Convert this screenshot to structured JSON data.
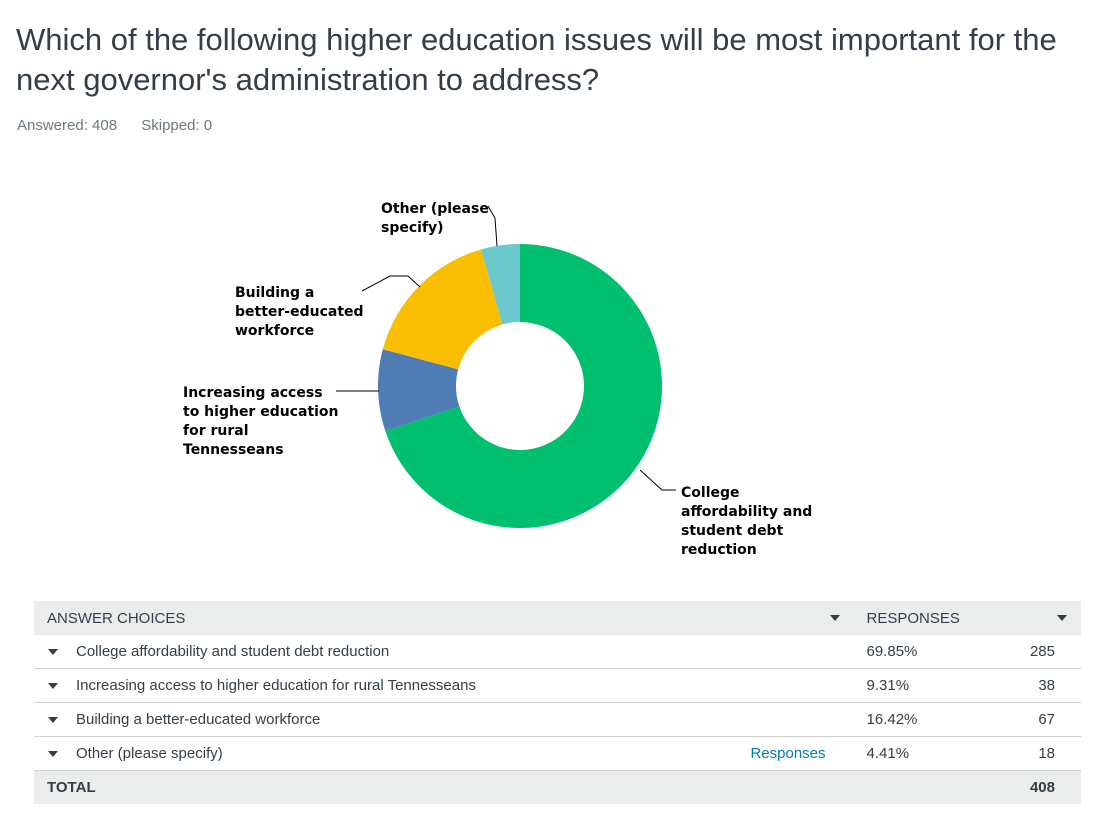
{
  "question": {
    "title": "Which of the following higher education issues will be most important for the next governor's administration to address?",
    "answered": "Answered: 408",
    "skipped": "Skipped: 0"
  },
  "chart_data": {
    "type": "pie",
    "donut": true,
    "categories": [
      "College affordability and student debt reduction",
      "Increasing access to higher education for rural Tennesseans",
      "Building a better-educated workforce",
      "Other (please specify)"
    ],
    "values": [
      69.85,
      9.31,
      16.42,
      4.41
    ],
    "colors": [
      "#00bf6f",
      "#507cb6",
      "#f9be00",
      "#6bc8cd"
    ],
    "slice_labels": [
      [
        "College",
        "affordability and",
        "student debt",
        "reduction"
      ],
      [
        "Increasing access",
        "to higher education",
        "for rural",
        "Tennesseans"
      ],
      [
        "Building a",
        "better-educated",
        "workforce"
      ],
      [
        "Other (please",
        "specify)"
      ]
    ]
  },
  "table": {
    "header_choice": "ANSWER CHOICES",
    "header_responses": "RESPONSES",
    "rows": [
      {
        "choice": "College affordability and student debt reduction",
        "percent": "69.85%",
        "count": "285",
        "link": ""
      },
      {
        "choice": "Increasing access to higher education for rural Tennesseans",
        "percent": "9.31%",
        "count": "38",
        "link": ""
      },
      {
        "choice": "Building a better-educated workforce",
        "percent": "16.42%",
        "count": "67",
        "link": ""
      },
      {
        "choice": "Other (please specify)",
        "percent": "4.41%",
        "count": "18",
        "link": "Responses"
      }
    ],
    "total_label": "TOTAL",
    "total_value": "408"
  }
}
